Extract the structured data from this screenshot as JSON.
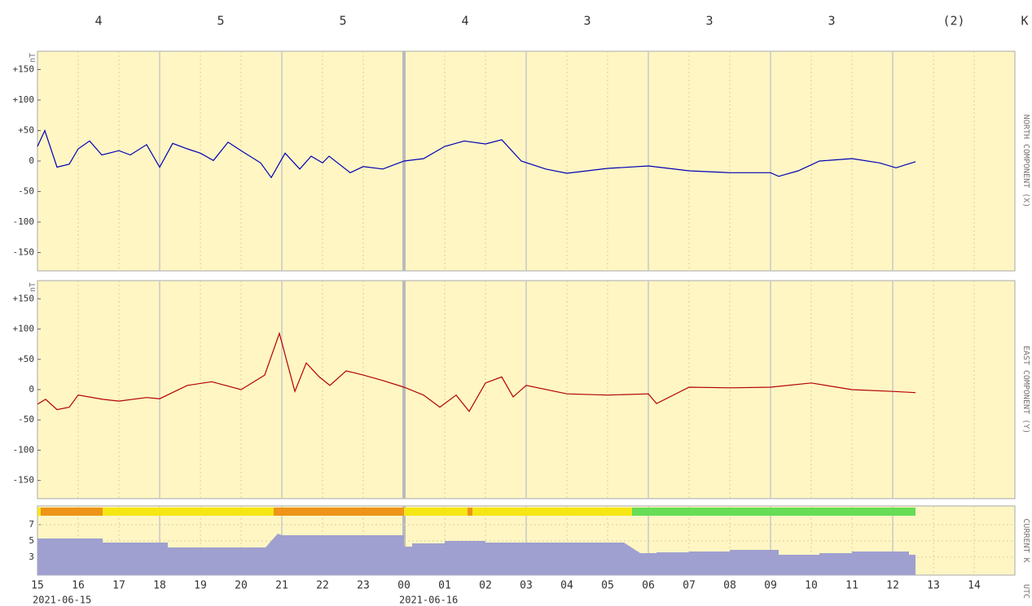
{
  "k_label": "K",
  "utc_label": "UTC",
  "k_indices": [
    "4",
    "5",
    "5",
    "4",
    "3",
    "3",
    "3",
    "(2)"
  ],
  "chart_data": [
    {
      "type": "line",
      "ylabel": "NORTH COMPONENT (X)",
      "unit": "nT",
      "x": [
        0,
        0.18,
        0.48,
        0.78,
        1,
        1.28,
        1.58,
        2,
        2.28,
        2.68,
        3,
        3.32,
        3.68,
        4,
        4.32,
        4.68,
        5,
        5.48,
        5.74,
        6.08,
        6.44,
        6.72,
        7,
        7.16,
        7.68,
        8,
        8.48,
        9,
        9.48,
        10,
        10.48,
        11,
        11.4,
        11.88,
        12.48,
        13,
        14,
        15,
        16,
        17,
        18,
        18.2,
        18.68,
        19.2,
        20,
        20.68,
        21.08,
        21.56
      ],
      "series": [
        {
          "color": "#0000b4",
          "values": [
            24,
            50,
            -10,
            -5,
            20,
            33,
            10,
            17,
            10,
            27,
            -10,
            29,
            20,
            13,
            1,
            31,
            17,
            -3,
            -27,
            13,
            -13,
            8,
            -3,
            8,
            -19,
            -9,
            -13,
            0,
            4,
            24,
            33,
            28,
            35,
            0,
            -13,
            -20,
            -12,
            -8,
            -16,
            -19,
            -19,
            -25,
            -16,
            0,
            4,
            -3,
            -11,
            -1
          ]
        }
      ],
      "xlim": [
        0,
        24
      ],
      "ylim": [
        -180,
        180
      ],
      "yticks": [
        {
          "value": 150,
          "label": "+150"
        },
        {
          "value": 100,
          "label": "+100"
        },
        {
          "value": 50,
          "label": "+50"
        },
        0,
        -50,
        -100,
        -150
      ]
    },
    {
      "type": "line",
      "ylabel": "EAST COMPONENT (Y)",
      "unit": "nT",
      "x": [
        0,
        0.2,
        0.48,
        0.78,
        1,
        1.6,
        2,
        2.68,
        3,
        3.68,
        4.28,
        5,
        5.58,
        5.94,
        6.32,
        6.6,
        6.92,
        7.18,
        7.58,
        8,
        8.48,
        9,
        9.48,
        9.88,
        10.28,
        10.6,
        11,
        11.4,
        11.68,
        12,
        13,
        14,
        15,
        15.2,
        16,
        17,
        18,
        19,
        20,
        21,
        21.56
      ],
      "series": [
        {
          "color": "#b40000",
          "values": [
            -24,
            -16,
            -33,
            -29,
            -9,
            -16,
            -19,
            -13,
            -15,
            7,
            13,
            0,
            24,
            93,
            -3,
            44,
            21,
            7,
            31,
            24,
            15,
            4,
            -9,
            -29,
            -9,
            -36,
            11,
            21,
            -12,
            7,
            -7,
            -9,
            -7,
            -23,
            4,
            3,
            4,
            11,
            0,
            -3,
            -5
          ]
        }
      ],
      "xlim": [
        0,
        24
      ],
      "ylim": [
        -180,
        180
      ],
      "yticks": [
        {
          "value": 150,
          "label": "+150"
        },
        {
          "value": 100,
          "label": "+100"
        },
        {
          "value": 50,
          "label": "+50"
        },
        0,
        -50,
        -100,
        -150
      ]
    },
    {
      "type": "area",
      "ylabel": "CURRENT K",
      "x": [
        0,
        1.6,
        1.6,
        3.2,
        3.2,
        5.6,
        5.9,
        6,
        9,
        9,
        9.2,
        9.2,
        10,
        10,
        11,
        11,
        14.4,
        14.8,
        15.2,
        15.2,
        16,
        16,
        17,
        17,
        18.2,
        18.2,
        19.2,
        19.2,
        20,
        20,
        21.4,
        21.4,
        21.56
      ],
      "series": [
        {
          "color": "#a0a0d0",
          "values": [
            5.3,
            5.3,
            4.8,
            4.8,
            4.2,
            4.2,
            5.9,
            5.7,
            5.7,
            4.3,
            4.3,
            4.7,
            4.7,
            5.0,
            5.0,
            4.8,
            4.8,
            3.5,
            3.5,
            3.6,
            3.6,
            3.7,
            3.7,
            3.9,
            3.9,
            3.3,
            3.3,
            3.5,
            3.5,
            3.7,
            3.7,
            3.3,
            3.3
          ]
        }
      ],
      "activity_bar": [
        {
          "start": 0,
          "end": 0.08,
          "color": "#f5e614"
        },
        {
          "start": 0.08,
          "end": 1.6,
          "color": "#ee9418"
        },
        {
          "start": 1.6,
          "end": 5.8,
          "color": "#f5e614"
        },
        {
          "start": 5.8,
          "end": 9,
          "color": "#ee9418"
        },
        {
          "start": 9,
          "end": 10.56,
          "color": "#f5e614"
        },
        {
          "start": 10.56,
          "end": 10.68,
          "color": "#ee9418"
        },
        {
          "start": 10.68,
          "end": 14.6,
          "color": "#f5e614"
        },
        {
          "start": 14.6,
          "end": 21.56,
          "color": "#66dd55"
        }
      ],
      "xlim": [
        0,
        24
      ],
      "ylim": [
        0.8,
        9.3
      ],
      "yticks": [
        7,
        5,
        3
      ],
      "xticks": [
        {
          "value": 0,
          "label": "15"
        },
        {
          "value": 1,
          "label": "16"
        },
        {
          "value": 2,
          "label": "17"
        },
        {
          "value": 3,
          "label": "18"
        },
        {
          "value": 4,
          "label": "19"
        },
        {
          "value": 5,
          "label": "20"
        },
        {
          "value": 6,
          "label": "21"
        },
        {
          "value": 7,
          "label": "22"
        },
        {
          "value": 8,
          "label": "23"
        },
        {
          "value": 9,
          "label": "00"
        },
        {
          "value": 10,
          "label": "01"
        },
        {
          "value": 11,
          "label": "02"
        },
        {
          "value": 12,
          "label": "03"
        },
        {
          "value": 13,
          "label": "04"
        },
        {
          "value": 14,
          "label": "05"
        },
        {
          "value": 15,
          "label": "06"
        },
        {
          "value": 16,
          "label": "07"
        },
        {
          "value": 17,
          "label": "08"
        },
        {
          "value": 18,
          "label": "09"
        },
        {
          "value": 19,
          "label": "10"
        },
        {
          "value": 20,
          "label": "11"
        },
        {
          "value": 21,
          "label": "12"
        },
        {
          "value": 22,
          "label": "13"
        },
        {
          "value": 23,
          "label": "14"
        }
      ],
      "date_labels": [
        {
          "value": 0,
          "label": "2021-06-15"
        },
        {
          "value": 9,
          "label": "2021-06-16"
        }
      ]
    }
  ]
}
